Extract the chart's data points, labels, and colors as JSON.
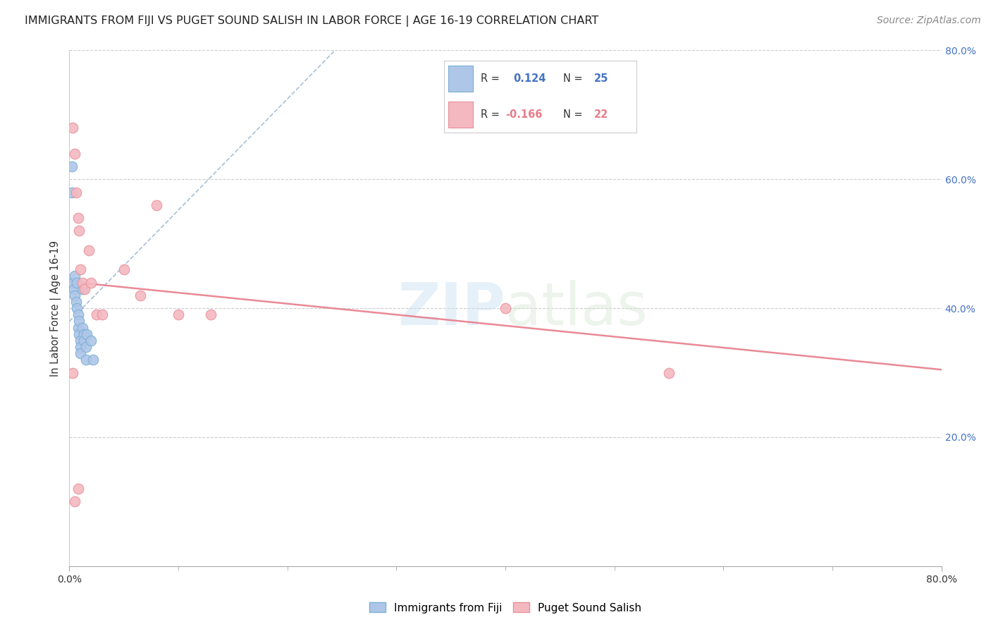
{
  "title": "IMMIGRANTS FROM FIJI VS PUGET SOUND SALISH IN LABOR FORCE | AGE 16-19 CORRELATION CHART",
  "source": "Source: ZipAtlas.com",
  "ylabel": "In Labor Force | Age 16-19",
  "xlim": [
    0.0,
    0.8
  ],
  "ylim": [
    0.0,
    0.8
  ],
  "ytick_positions": [
    0.2,
    0.4,
    0.6,
    0.8
  ],
  "ytick_labels": [
    "20.0%",
    "40.0%",
    "60.0%",
    "80.0%"
  ],
  "grid_color": "#cccccc",
  "background_color": "#ffffff",
  "fiji_color": "#aec6e8",
  "fiji_edge_color": "#7bafd4",
  "salish_color": "#f4b8c0",
  "salish_edge_color": "#e8909a",
  "fiji_R": 0.124,
  "fiji_N": 25,
  "salish_R": -0.166,
  "salish_N": 22,
  "fiji_line_color": "#88aacc",
  "salish_line_color": "#e87c8a",
  "fiji_points_x": [
    0.002,
    0.002,
    0.003,
    0.004,
    0.005,
    0.005,
    0.006,
    0.007,
    0.007,
    0.008,
    0.008,
    0.009,
    0.009,
    0.01,
    0.01,
    0.01,
    0.012,
    0.012,
    0.013,
    0.013,
    0.015,
    0.015,
    0.016,
    0.02,
    0.022
  ],
  "fiji_points_y": [
    0.62,
    0.58,
    0.44,
    0.43,
    0.45,
    0.42,
    0.41,
    0.4,
    0.44,
    0.39,
    0.37,
    0.38,
    0.36,
    0.35,
    0.34,
    0.33,
    0.43,
    0.37,
    0.36,
    0.35,
    0.34,
    0.32,
    0.36,
    0.35,
    0.32
  ],
  "salish_points_x": [
    0.003,
    0.005,
    0.006,
    0.008,
    0.009,
    0.01,
    0.012,
    0.014,
    0.018,
    0.02,
    0.025,
    0.03,
    0.05,
    0.065,
    0.08,
    0.1,
    0.13,
    0.4,
    0.55,
    0.003,
    0.005,
    0.008
  ],
  "salish_points_y": [
    0.68,
    0.64,
    0.58,
    0.54,
    0.52,
    0.46,
    0.44,
    0.43,
    0.49,
    0.44,
    0.39,
    0.39,
    0.46,
    0.42,
    0.56,
    0.39,
    0.39,
    0.4,
    0.3,
    0.3,
    0.1,
    0.12
  ],
  "legend_fiji_label": "Immigrants from Fiji",
  "legend_salish_label": "Puget Sound Salish",
  "watermark_zip": "ZIP",
  "watermark_atlas": "atlas",
  "marker_size": 110
}
